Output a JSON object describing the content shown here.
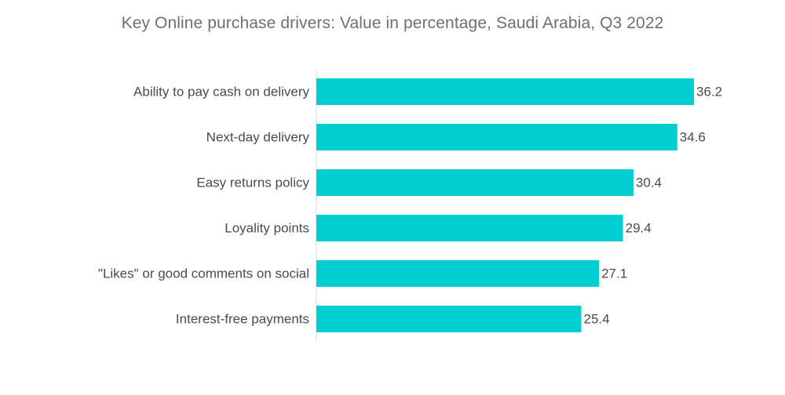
{
  "chart_data": {
    "type": "bar",
    "orientation": "horizontal",
    "title": "Key Online purchase drivers: Value in percentage, Saudi Arabia, Q3 2022",
    "categories": [
      "Ability to pay cash on delivery",
      "Next-day delivery",
      "Easy returns policy",
      "Loyality points",
      "\"Likes\" or good comments on social",
      "Interest-free payments"
    ],
    "values": [
      36.2,
      34.6,
      30.4,
      29.4,
      27.1,
      25.4
    ],
    "value_labels": [
      "36.2",
      "34.6",
      "30.4",
      "29.4",
      "27.1",
      "25.4"
    ],
    "xlabel": "",
    "ylabel": "",
    "xlim": [
      0,
      36.2
    ],
    "grid": false,
    "legend": "none",
    "bar_color": "#00CED1",
    "axis_color": "#d9d9d9"
  }
}
